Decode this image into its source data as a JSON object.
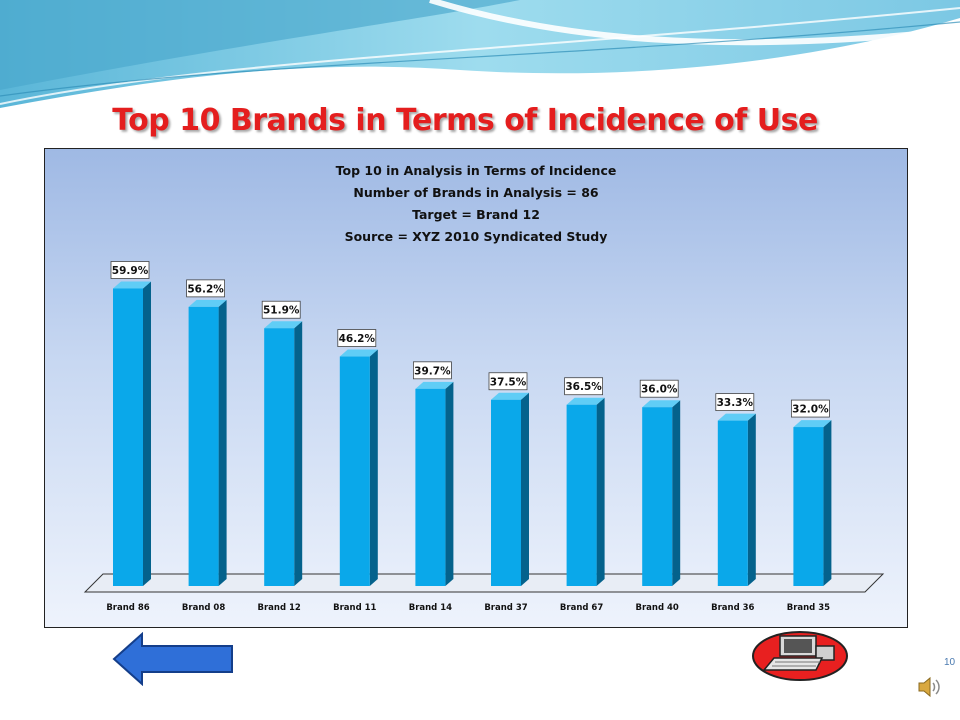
{
  "slide": {
    "title": "Top 10 Brands in Terms of Incidence of Use",
    "number": "10"
  },
  "colors": {
    "title": "#e41e1e",
    "bar_front": "#0aa8ea",
    "bar_side": "#04628c",
    "bar_top": "#60cdf6",
    "plot_top": "#9fb9e4",
    "plot_bottom": "#eef3fc",
    "back_arrow": "#2f6fd8"
  },
  "icons": {
    "back": "left-arrow-icon",
    "computer": "computer-icon",
    "sound": "speaker-icon"
  },
  "chart_data": {
    "type": "bar",
    "title_lines": [
      "Top 10 in Analysis in Terms of Incidence",
      "Number of Brands in Analysis = 86",
      "Target = Brand 12",
      "Source = XYZ 2010 Syndicated Study"
    ],
    "categories": [
      "Brand 86",
      "Brand 08",
      "Brand 12",
      "Brand 11",
      "Brand 14",
      "Brand 37",
      "Brand 67",
      "Brand 40",
      "Brand 36",
      "Brand 35"
    ],
    "values": [
      59.9,
      56.2,
      51.9,
      46.2,
      39.7,
      37.5,
      36.5,
      36.0,
      33.3,
      32.0
    ],
    "value_labels": [
      "59.9%",
      "56.2%",
      "51.9%",
      "46.2%",
      "39.7%",
      "37.5%",
      "36.5%",
      "36.0%",
      "33.3%",
      "32.0%"
    ],
    "ylim": [
      0,
      60
    ],
    "grid": false,
    "legend": "none",
    "style": "3d-bars"
  }
}
